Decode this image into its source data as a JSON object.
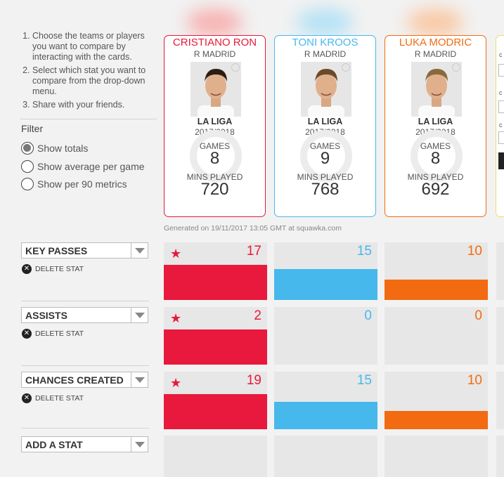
{
  "instructions": [
    "Choose the teams or players you want to compare by interacting with the cards.",
    "Select which stat you want to compare from the drop-down menu.",
    "Share with your friends."
  ],
  "filter": {
    "title": "Filter",
    "options": [
      "Show totals",
      "Show average per game",
      "Show per 90 metrics"
    ],
    "selected": "Show totals"
  },
  "players": [
    {
      "name": "CRISTIANO RON",
      "team": "R MADRID",
      "league": "LA LIGA",
      "season": "2017/2018",
      "games_label": "GAMES",
      "games": "8",
      "mins_label": "MINS PLAYED",
      "mins": "720",
      "color": "#e8193c",
      "glow": "#f7b3b3"
    },
    {
      "name": "TONI KROOS",
      "team": "R MADRID",
      "league": "LA LIGA",
      "season": "2017/2018",
      "games_label": "GAMES",
      "games": "9",
      "mins_label": "MINS PLAYED",
      "mins": "768",
      "color": "#46b8ec",
      "glow": "#b5e2f5"
    },
    {
      "name": "LUKA MODRIC",
      "team": "R MADRID",
      "league": "LA LIGA",
      "season": "2017/2018",
      "games_label": "GAMES",
      "games": "8",
      "mins_label": "MINS PLAYED",
      "mins": "692",
      "color": "#f26b11",
      "glow": "#f9c9a6"
    }
  ],
  "generated": "Generated on 19/11/2017 13:05 GMT at squawka.com",
  "side_panel_letters": [
    "c",
    "c",
    "c"
  ],
  "stats": [
    {
      "label": "KEY PASSES",
      "delete_label": "DELETE STAT",
      "values": [
        17,
        15,
        10
      ],
      "values_text": [
        "17",
        "15",
        "10"
      ],
      "leader": 0
    },
    {
      "label": "ASSISTS",
      "delete_label": "DELETE STAT",
      "values": [
        2,
        0,
        0
      ],
      "values_text": [
        "2",
        "0",
        "0"
      ],
      "leader": 0
    },
    {
      "label": "CHANCES CREATED",
      "delete_label": "DELETE STAT",
      "values": [
        19,
        15,
        10
      ],
      "values_text": [
        "19",
        "15",
        "10"
      ],
      "leader": 0
    }
  ],
  "add_stat": {
    "label": "ADD A STAT"
  },
  "icons": {
    "dropdown": "chevron-down-icon",
    "delete": "close-circle-icon",
    "leader": "star-icon"
  }
}
